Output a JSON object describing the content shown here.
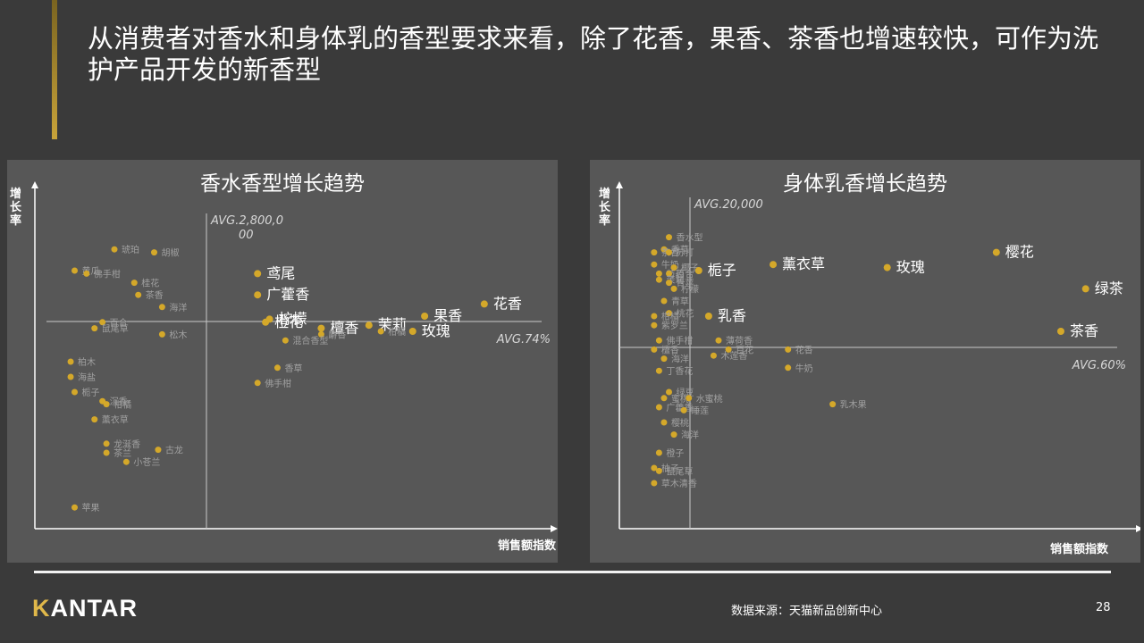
{
  "title": "从消费者对香水和身体乳的香型要求来看，除了花香，果香、茶香也增速较快，可作为洗护产品开发的新香型",
  "footer": {
    "logo_rest": "ANTAR",
    "logo_k": "K",
    "source": "数据来源：天猫新品创新中心",
    "page": "28"
  },
  "colors": {
    "point": "#d4a82a",
    "axis": "#ffffff",
    "avg_line": "#c8c8c8",
    "label_dim": "#a0a0a0",
    "label_bright": "#ffffff"
  },
  "chart_data": [
    {
      "type": "scatter",
      "title": "香水香型增长趋势",
      "xlabel": "销售额指数",
      "ylabel": "增长率",
      "avg_x_label": "AVG.2,800,000",
      "avg_y_label": "AVG.74%",
      "points": [
        {
          "label": "琥珀",
          "x": 0.2,
          "y": 0.92,
          "hl": false
        },
        {
          "label": "胡椒",
          "x": 0.3,
          "y": 0.91,
          "hl": false
        },
        {
          "label": "黄瓜",
          "x": 0.1,
          "y": 0.85,
          "hl": false
        },
        {
          "label": "佛手柑",
          "x": 0.13,
          "y": 0.84,
          "hl": false
        },
        {
          "label": "桂花",
          "x": 0.25,
          "y": 0.81,
          "hl": false
        },
        {
          "label": "茶香",
          "x": 0.26,
          "y": 0.77,
          "hl": false
        },
        {
          "label": "海洋",
          "x": 0.32,
          "y": 0.73,
          "hl": false
        },
        {
          "label": "百合",
          "x": 0.17,
          "y": 0.68,
          "hl": false
        },
        {
          "label": "鼠尾草",
          "x": 0.15,
          "y": 0.66,
          "hl": false
        },
        {
          "label": "松木",
          "x": 0.32,
          "y": 0.64,
          "hl": false
        },
        {
          "label": "柏木",
          "x": 0.09,
          "y": 0.55,
          "hl": false
        },
        {
          "label": "海盐",
          "x": 0.09,
          "y": 0.5,
          "hl": false
        },
        {
          "label": "栀子",
          "x": 0.1,
          "y": 0.45,
          "hl": false
        },
        {
          "label": "沉香",
          "x": 0.17,
          "y": 0.42,
          "hl": false
        },
        {
          "label": "柑橘",
          "x": 0.18,
          "y": 0.41,
          "hl": false
        },
        {
          "label": "薰衣草",
          "x": 0.15,
          "y": 0.36,
          "hl": false
        },
        {
          "label": "龙涎香",
          "x": 0.18,
          "y": 0.28,
          "hl": false
        },
        {
          "label": "古龙",
          "x": 0.31,
          "y": 0.26,
          "hl": false
        },
        {
          "label": "茶兰",
          "x": 0.18,
          "y": 0.25,
          "hl": false
        },
        {
          "label": "小苍兰",
          "x": 0.23,
          "y": 0.22,
          "hl": false
        },
        {
          "label": "苹果",
          "x": 0.1,
          "y": 0.07,
          "hl": false
        },
        {
          "label": "鸢尾",
          "x": 0.56,
          "y": 0.84,
          "hl": true
        },
        {
          "label": "广藿香",
          "x": 0.56,
          "y": 0.77,
          "hl": true
        },
        {
          "label": "橙花",
          "x": 0.58,
          "y": 0.68,
          "hl": true
        },
        {
          "label": "柠檬",
          "x": 0.59,
          "y": 0.69,
          "hl": true
        },
        {
          "label": "檀香",
          "x": 0.72,
          "y": 0.66,
          "hl": true
        },
        {
          "label": "麝香",
          "x": 0.72,
          "y": 0.64,
          "hl": false
        },
        {
          "label": "茉莉",
          "x": 0.84,
          "y": 0.67,
          "hl": true
        },
        {
          "label": "柑橘",
          "x": 0.87,
          "y": 0.65,
          "hl": false
        },
        {
          "label": "果香",
          "x": 0.98,
          "y": 0.7,
          "hl": true
        },
        {
          "label": "玫瑰",
          "x": 0.95,
          "y": 0.65,
          "hl": true
        },
        {
          "label": "花香",
          "x": 1.13,
          "y": 0.74,
          "hl": true
        },
        {
          "label": "混合香型",
          "x": 0.63,
          "y": 0.62,
          "hl": false
        },
        {
          "label": "香草",
          "x": 0.61,
          "y": 0.53,
          "hl": false
        },
        {
          "label": "佛手柑",
          "x": 0.56,
          "y": 0.48,
          "hl": false
        }
      ]
    },
    {
      "type": "scatter",
      "title": "身体乳香增长趋势",
      "xlabel": "销售额指数",
      "ylabel": "增长率",
      "avg_x_label": "AVG.20,000",
      "avg_y_label": "AVG.60%",
      "points": [
        {
          "label": "香水型",
          "x": 0.1,
          "y": 0.96,
          "hl": false
        },
        {
          "label": "香草",
          "x": 0.09,
          "y": 0.92,
          "hl": false
        },
        {
          "label": "茶香",
          "x": 0.07,
          "y": 0.91,
          "hl": false
        },
        {
          "label": "苏打",
          "x": 0.1,
          "y": 0.91,
          "hl": false
        },
        {
          "label": "牛奶",
          "x": 0.07,
          "y": 0.87,
          "hl": false
        },
        {
          "label": "椰子",
          "x": 0.11,
          "y": 0.86,
          "hl": false
        },
        {
          "label": "芍药",
          "x": 0.08,
          "y": 0.84,
          "hl": false
        },
        {
          "label": "百合",
          "x": 0.1,
          "y": 0.84,
          "hl": false
        },
        {
          "label": "茉莉",
          "x": 0.08,
          "y": 0.82,
          "hl": false
        },
        {
          "label": "青苹",
          "x": 0.1,
          "y": 0.81,
          "hl": false
        },
        {
          "label": "柠檬",
          "x": 0.11,
          "y": 0.79,
          "hl": false
        },
        {
          "label": "青草",
          "x": 0.09,
          "y": 0.75,
          "hl": false
        },
        {
          "label": "桃花",
          "x": 0.1,
          "y": 0.71,
          "hl": false
        },
        {
          "label": "柑橘",
          "x": 0.07,
          "y": 0.7,
          "hl": false
        },
        {
          "label": "紫罗兰",
          "x": 0.07,
          "y": 0.67,
          "hl": false
        },
        {
          "label": "佛手柑",
          "x": 0.08,
          "y": 0.62,
          "hl": false
        },
        {
          "label": "檀香",
          "x": 0.07,
          "y": 0.59,
          "hl": false
        },
        {
          "label": "海洋",
          "x": 0.09,
          "y": 0.56,
          "hl": false
        },
        {
          "label": "丁香花",
          "x": 0.08,
          "y": 0.52,
          "hl": false
        },
        {
          "label": "绿豆",
          "x": 0.1,
          "y": 0.45,
          "hl": false
        },
        {
          "label": "蜜桃",
          "x": 0.09,
          "y": 0.43,
          "hl": false
        },
        {
          "label": "水蜜桃",
          "x": 0.14,
          "y": 0.43,
          "hl": false
        },
        {
          "label": "广藿香",
          "x": 0.08,
          "y": 0.4,
          "hl": false
        },
        {
          "label": "睡莲",
          "x": 0.13,
          "y": 0.39,
          "hl": false
        },
        {
          "label": "樱桃",
          "x": 0.09,
          "y": 0.35,
          "hl": false
        },
        {
          "label": "海洋",
          "x": 0.11,
          "y": 0.31,
          "hl": false
        },
        {
          "label": "橙子",
          "x": 0.08,
          "y": 0.25,
          "hl": false
        },
        {
          "label": "柚子",
          "x": 0.07,
          "y": 0.2,
          "hl": false
        },
        {
          "label": "鼠尾草",
          "x": 0.08,
          "y": 0.19,
          "hl": false
        },
        {
          "label": "草木清香",
          "x": 0.07,
          "y": 0.15,
          "hl": false
        },
        {
          "label": "薄荷香",
          "x": 0.2,
          "y": 0.62,
          "hl": false
        },
        {
          "label": "木莲香",
          "x": 0.19,
          "y": 0.57,
          "hl": false
        },
        {
          "label": "百花",
          "x": 0.22,
          "y": 0.59,
          "hl": false
        },
        {
          "label": "花香",
          "x": 0.34,
          "y": 0.59,
          "hl": false
        },
        {
          "label": "牛奶",
          "x": 0.34,
          "y": 0.53,
          "hl": false
        },
        {
          "label": "乳木果",
          "x": 0.43,
          "y": 0.41,
          "hl": false
        },
        {
          "label": "栀子",
          "x": 0.16,
          "y": 0.85,
          "hl": true
        },
        {
          "label": "乳香",
          "x": 0.18,
          "y": 0.7,
          "hl": true
        },
        {
          "label": "薰衣草",
          "x": 0.31,
          "y": 0.87,
          "hl": true
        },
        {
          "label": "玫瑰",
          "x": 0.54,
          "y": 0.86,
          "hl": true
        },
        {
          "label": "樱花",
          "x": 0.76,
          "y": 0.91,
          "hl": true
        },
        {
          "label": "绿茶",
          "x": 0.94,
          "y": 0.79,
          "hl": true
        },
        {
          "label": "茶香",
          "x": 0.89,
          "y": 0.65,
          "hl": true
        }
      ]
    }
  ]
}
